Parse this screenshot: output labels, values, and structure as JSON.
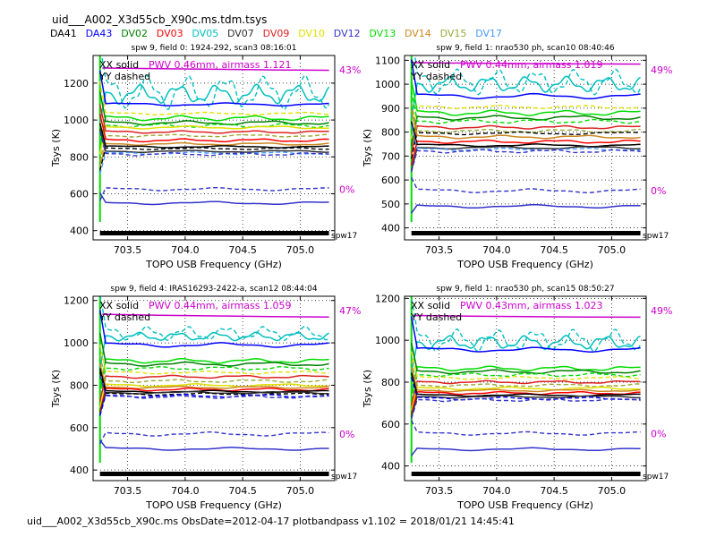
{
  "figure_title": "uid___A002_X3d55cb_X90c.ms.tdm.tsys",
  "footer": "uid___A002_X3d55cb_X90c.ms  ObsDate=2012-04-17   plotbandpass v1.102 = 2018/01/21 14:45:41",
  "antennas": [
    {
      "name": "DA41",
      "color": "#000000"
    },
    {
      "name": "DA43",
      "color": "#0000ff"
    },
    {
      "name": "DV02",
      "color": "#008000"
    },
    {
      "name": "DV03",
      "color": "#ff0000"
    },
    {
      "name": "DV05",
      "color": "#00bfbf"
    },
    {
      "name": "DV07",
      "color": "#303030"
    },
    {
      "name": "DV09",
      "color": "#dd2222"
    },
    {
      "name": "DV10",
      "color": "#e0e000"
    },
    {
      "name": "DV12",
      "color": "#3333cc"
    },
    {
      "name": "DV13",
      "color": "#00dd00"
    },
    {
      "name": "DV14",
      "color": "#cc8822"
    },
    {
      "name": "DV15",
      "color": "#99aa33"
    },
    {
      "name": "DV17",
      "color": "#4499ff"
    }
  ],
  "chart_data": [
    {
      "type": "line",
      "title": "spw 9,  field 0: 1924-292,  scan3  08:16:01",
      "xlabel": "TOPO USB Frequency (GHz)",
      "ylabel": "Tsys (K)",
      "xlim": [
        703.2,
        705.3
      ],
      "ylim": [
        350,
        1350
      ],
      "xticks": [
        703.5,
        704.0,
        704.5,
        705.0
      ],
      "xtick_labels": [
        "703.5",
        "704.0",
        "704.5",
        "705.0"
      ],
      "yticks": [
        400,
        600,
        800,
        1000,
        1200
      ],
      "ytick_labels": [
        "400",
        "600",
        "800",
        "1000",
        "1200"
      ],
      "grid": true,
      "legend_lines": [
        "XX solid",
        "YY dashed"
      ],
      "pwv_text": "PWV 0.46mm, airmass 1.121",
      "atm_percent_top": "43%",
      "atm_percent_bottom": "0%",
      "spw_label": "spw17",
      "atm_curve_y": [
        1282,
        1278,
        1275,
        1272,
        1270
      ],
      "series": [
        {
          "color": "#00bfbf",
          "style": "dashed",
          "base": 1150,
          "osc": 70,
          "period": 0.34,
          "phase": 0.2
        },
        {
          "color": "#00bfbf",
          "style": "solid",
          "base": 1140,
          "osc": 40,
          "period": 0.34,
          "phase": 1.6
        },
        {
          "color": "#0000ff",
          "style": "solid",
          "base": 1085,
          "osc": 6,
          "period": 0.9,
          "phase": 0
        },
        {
          "color": "#00dd00",
          "style": "solid",
          "base": 1010,
          "osc": 10,
          "period": 0.6,
          "phase": 0.4
        },
        {
          "color": "#008000",
          "style": "solid",
          "base": 985,
          "osc": 8,
          "period": 0.7,
          "phase": 1.1
        },
        {
          "color": "#00dd00",
          "style": "dashed",
          "base": 970,
          "osc": 8,
          "period": 0.55,
          "phase": 2.0
        },
        {
          "color": "#e0e000",
          "style": "dashed",
          "base": 1035,
          "osc": 5,
          "period": 0.8,
          "phase": 0.6
        },
        {
          "color": "#e0e000",
          "style": "solid",
          "base": 960,
          "osc": 6,
          "period": 0.75,
          "phase": 1.5
        },
        {
          "color": "#dd2222",
          "style": "solid",
          "base": 935,
          "osc": 5,
          "period": 0.6,
          "phase": 0.3
        },
        {
          "color": "#99aa33",
          "style": "dashed",
          "base": 915,
          "osc": 5,
          "period": 0.7,
          "phase": 2.4
        },
        {
          "color": "#ff0000",
          "style": "solid",
          "base": 890,
          "osc": 6,
          "period": 0.65,
          "phase": 0.9
        },
        {
          "color": "#cc8822",
          "style": "solid",
          "base": 870,
          "osc": 5,
          "period": 0.7,
          "phase": 1.7
        },
        {
          "color": "#000000",
          "style": "solid",
          "base": 855,
          "osc": 4,
          "period": 0.9,
          "phase": 0.2
        },
        {
          "color": "#000000",
          "style": "dashed",
          "base": 845,
          "osc": 4,
          "period": 0.8,
          "phase": 1.2
        },
        {
          "color": "#303030",
          "style": "solid",
          "base": 830,
          "osc": 4,
          "period": 0.85,
          "phase": 2.2
        },
        {
          "color": "#4499ff",
          "style": "dashed",
          "base": 820,
          "osc": 5,
          "period": 0.7,
          "phase": 0.5
        },
        {
          "color": "#3333cc",
          "style": "dashed",
          "base": 815,
          "osc": 6,
          "period": 0.6,
          "phase": 1.4
        },
        {
          "color": "#3333cc",
          "style": "dashed",
          "base": 625,
          "osc": 6,
          "period": 0.9,
          "phase": 0.8
        },
        {
          "color": "#3333cc",
          "style": "solid",
          "base": 550,
          "osc": 6,
          "period": 1.0,
          "phase": 1.9
        }
      ]
    },
    {
      "type": "line",
      "title": "spw 9,  field 1: nrao530 ph,  scan10  08:40:46",
      "xlabel": "TOPO USB Frequency (GHz)",
      "ylabel": "Tsys (K)",
      "xlim": [
        703.2,
        705.3
      ],
      "ylim": [
        350,
        1120
      ],
      "xticks": [
        703.5,
        704.0,
        704.5,
        705.0
      ],
      "xtick_labels": [
        "703.5",
        "704.0",
        "704.5",
        "705.0"
      ],
      "yticks": [
        400,
        500,
        600,
        700,
        800,
        900,
        1000,
        1100
      ],
      "ytick_labels": [
        "400",
        "500",
        "600",
        "700",
        "800",
        "900",
        "1000",
        "1100"
      ],
      "grid": true,
      "legend_lines": [
        "XX solid",
        "YY dashed"
      ],
      "pwv_text": "PWV 0.44mm, airmass 1.019",
      "atm_percent_top": "49%",
      "atm_percent_bottom": "0%",
      "spw_label": "spw17",
      "atm_curve_y": [
        1090,
        1088,
        1086,
        1085,
        1084
      ],
      "series": [
        {
          "color": "#00bfbf",
          "style": "dashed",
          "base": 1010,
          "osc": 40,
          "period": 0.34,
          "phase": 0.4
        },
        {
          "color": "#00bfbf",
          "style": "solid",
          "base": 1000,
          "osc": 25,
          "period": 0.34,
          "phase": 1.9
        },
        {
          "color": "#0000ff",
          "style": "solid",
          "base": 950,
          "osc": 8,
          "period": 0.9,
          "phase": 0.3
        },
        {
          "color": "#e0e000",
          "style": "dashed",
          "base": 905,
          "osc": 5,
          "period": 0.7,
          "phase": 1.0
        },
        {
          "color": "#00dd00",
          "style": "solid",
          "base": 880,
          "osc": 8,
          "period": 0.6,
          "phase": 0.4
        },
        {
          "color": "#008000",
          "style": "solid",
          "base": 860,
          "osc": 7,
          "period": 0.7,
          "phase": 1.3
        },
        {
          "color": "#00dd00",
          "style": "dashed",
          "base": 845,
          "osc": 6,
          "period": 0.55,
          "phase": 2.0
        },
        {
          "color": "#dd2222",
          "style": "solid",
          "base": 820,
          "osc": 5,
          "period": 0.6,
          "phase": 0.6
        },
        {
          "color": "#99aa33",
          "style": "dashed",
          "base": 805,
          "osc": 5,
          "period": 0.7,
          "phase": 2.3
        },
        {
          "color": "#000000",
          "style": "dashed",
          "base": 795,
          "osc": 4,
          "period": 0.9,
          "phase": 1.5
        },
        {
          "color": "#cc8822",
          "style": "solid",
          "base": 780,
          "osc": 5,
          "period": 0.7,
          "phase": 0.8
        },
        {
          "color": "#ff0000",
          "style": "solid",
          "base": 760,
          "osc": 5,
          "period": 0.65,
          "phase": 1.8
        },
        {
          "color": "#000000",
          "style": "solid",
          "base": 745,
          "osc": 4,
          "period": 0.9,
          "phase": 0.1
        },
        {
          "color": "#303030",
          "style": "solid",
          "base": 735,
          "osc": 4,
          "period": 0.85,
          "phase": 2.4
        },
        {
          "color": "#4499ff",
          "style": "dashed",
          "base": 728,
          "osc": 4,
          "period": 0.7,
          "phase": 0.7
        },
        {
          "color": "#3333cc",
          "style": "dashed",
          "base": 720,
          "osc": 5,
          "period": 0.6,
          "phase": 1.6
        },
        {
          "color": "#3333cc",
          "style": "dashed",
          "base": 555,
          "osc": 6,
          "period": 0.9,
          "phase": 0.5
        },
        {
          "color": "#3333cc",
          "style": "solid",
          "base": 490,
          "osc": 5,
          "period": 1.0,
          "phase": 1.2
        }
      ]
    },
    {
      "type": "line",
      "title": "spw 9,  field 4: IRAS16293-2422-a,  scan12  08:44:04",
      "xlabel": "TOPO USB Frequency (GHz)",
      "ylabel": "Tsys (K)",
      "xlim": [
        703.2,
        705.3
      ],
      "ylim": [
        350,
        1220
      ],
      "xticks": [
        703.5,
        704.0,
        704.5,
        705.0
      ],
      "xtick_labels": [
        "703.5",
        "704.0",
        "704.5",
        "705.0"
      ],
      "yticks": [
        400,
        600,
        800,
        1000,
        1200
      ],
      "ytick_labels": [
        "400",
        "600",
        "800",
        "1000",
        "1200"
      ],
      "grid": true,
      "legend_lines": [
        "XX solid",
        "YY dashed"
      ],
      "pwv_text": "PWV 0.44mm, airmass 1.059",
      "atm_percent_top": "47%",
      "atm_percent_bottom": "0%",
      "spw_label": "spw17",
      "atm_curve_y": [
        1135,
        1130,
        1127,
        1124,
        1122
      ],
      "series": [
        {
          "color": "#00bfbf",
          "style": "dashed",
          "base": 1045,
          "osc": 25,
          "period": 0.34,
          "phase": 0.2
        },
        {
          "color": "#00bfbf",
          "style": "solid",
          "base": 1030,
          "osc": 15,
          "period": 0.34,
          "phase": 1.7
        },
        {
          "color": "#0000ff",
          "style": "solid",
          "base": 990,
          "osc": 8,
          "period": 0.9,
          "phase": 0.4
        },
        {
          "color": "#00dd00",
          "style": "solid",
          "base": 915,
          "osc": 8,
          "period": 0.6,
          "phase": 0.3
        },
        {
          "color": "#008000",
          "style": "solid",
          "base": 900,
          "osc": 7,
          "period": 0.7,
          "phase": 1.2
        },
        {
          "color": "#00dd00",
          "style": "dashed",
          "base": 880,
          "osc": 6,
          "period": 0.55,
          "phase": 2.1
        },
        {
          "color": "#e0e000",
          "style": "dashed",
          "base": 860,
          "osc": 5,
          "period": 0.8,
          "phase": 0.6
        },
        {
          "color": "#dd2222",
          "style": "solid",
          "base": 840,
          "osc": 5,
          "period": 0.6,
          "phase": 1.4
        },
        {
          "color": "#99aa33",
          "style": "dashed",
          "base": 820,
          "osc": 5,
          "period": 0.7,
          "phase": 2.2
        },
        {
          "color": "#e0e000",
          "style": "solid",
          "base": 800,
          "osc": 5,
          "period": 0.75,
          "phase": 0.9
        },
        {
          "color": "#cc8822",
          "style": "solid",
          "base": 790,
          "osc": 4,
          "period": 0.7,
          "phase": 1.9
        },
        {
          "color": "#ff0000",
          "style": "solid",
          "base": 780,
          "osc": 5,
          "period": 0.65,
          "phase": 0.2
        },
        {
          "color": "#000000",
          "style": "solid",
          "base": 770,
          "osc": 4,
          "period": 0.9,
          "phase": 1.1
        },
        {
          "color": "#303030",
          "style": "solid",
          "base": 765,
          "osc": 4,
          "period": 0.85,
          "phase": 2.3
        },
        {
          "color": "#000000",
          "style": "dashed",
          "base": 758,
          "osc": 4,
          "period": 0.8,
          "phase": 0.7
        },
        {
          "color": "#0000ff",
          "style": "dashed",
          "base": 750,
          "osc": 5,
          "period": 0.7,
          "phase": 1.5
        },
        {
          "color": "#3333cc",
          "style": "dashed",
          "base": 745,
          "osc": 5,
          "period": 0.6,
          "phase": 0.4
        },
        {
          "color": "#3333cc",
          "style": "dashed",
          "base": 570,
          "osc": 7,
          "period": 0.9,
          "phase": 1.3
        },
        {
          "color": "#3333cc",
          "style": "solid",
          "base": 500,
          "osc": 5,
          "period": 1.0,
          "phase": 0.6
        }
      ]
    },
    {
      "type": "line",
      "title": "spw 9,  field 1: nrao530 ph,  scan15  08:50:27",
      "xlabel": "TOPO USB Frequency (GHz)",
      "ylabel": "Tsys (K)",
      "xlim": [
        703.2,
        705.3
      ],
      "ylim": [
        330,
        1210
      ],
      "xticks": [
        703.5,
        704.0,
        704.5,
        705.0
      ],
      "xtick_labels": [
        "703.5",
        "704.0",
        "704.5",
        "705.0"
      ],
      "yticks": [
        400,
        600,
        800,
        1000,
        1200
      ],
      "ytick_labels": [
        "400",
        "600",
        "800",
        "1000",
        "1200"
      ],
      "grid": true,
      "legend_lines": [
        "XX solid",
        "YY dashed"
      ],
      "pwv_text": "PWV 0.43mm, airmass 1.023",
      "atm_percent_top": "49%",
      "atm_percent_bottom": "0%",
      "spw_label": "spw17",
      "atm_curve_y": [
        1118,
        1115,
        1113,
        1111,
        1110
      ],
      "series": [
        {
          "color": "#00bfbf",
          "style": "dashed",
          "base": 1000,
          "osc": 40,
          "period": 0.34,
          "phase": 0.5
        },
        {
          "color": "#00bfbf",
          "style": "solid",
          "base": 990,
          "osc": 25,
          "period": 0.34,
          "phase": 2.0
        },
        {
          "color": "#0000ff",
          "style": "solid",
          "base": 955,
          "osc": 8,
          "period": 0.9,
          "phase": 0.2
        },
        {
          "color": "#00dd00",
          "style": "solid",
          "base": 865,
          "osc": 8,
          "period": 0.6,
          "phase": 0.7
        },
        {
          "color": "#008000",
          "style": "solid",
          "base": 850,
          "osc": 7,
          "period": 0.7,
          "phase": 1.5
        },
        {
          "color": "#00dd00",
          "style": "dashed",
          "base": 835,
          "osc": 6,
          "period": 0.55,
          "phase": 2.2
        },
        {
          "color": "#e0e000",
          "style": "dashed",
          "base": 820,
          "osc": 5,
          "period": 0.8,
          "phase": 0.4
        },
        {
          "color": "#dd2222",
          "style": "solid",
          "base": 800,
          "osc": 5,
          "period": 0.6,
          "phase": 1.1
        },
        {
          "color": "#99aa33",
          "style": "dashed",
          "base": 785,
          "osc": 5,
          "period": 0.7,
          "phase": 2.5
        },
        {
          "color": "#e0e000",
          "style": "solid",
          "base": 770,
          "osc": 5,
          "period": 0.75,
          "phase": 0.8
        },
        {
          "color": "#cc8822",
          "style": "solid",
          "base": 760,
          "osc": 4,
          "period": 0.7,
          "phase": 1.7
        },
        {
          "color": "#ff0000",
          "style": "solid",
          "base": 748,
          "osc": 5,
          "period": 0.65,
          "phase": 0.3
        },
        {
          "color": "#000000",
          "style": "solid",
          "base": 738,
          "osc": 4,
          "period": 0.9,
          "phase": 1.0
        },
        {
          "color": "#303030",
          "style": "solid",
          "base": 730,
          "osc": 4,
          "period": 0.85,
          "phase": 2.1
        },
        {
          "color": "#0000ff",
          "style": "dashed",
          "base": 722,
          "osc": 5,
          "period": 0.7,
          "phase": 0.6
        },
        {
          "color": "#3333cc",
          "style": "dashed",
          "base": 715,
          "osc": 5,
          "period": 0.6,
          "phase": 1.8
        },
        {
          "color": "#3333cc",
          "style": "dashed",
          "base": 555,
          "osc": 6,
          "period": 0.9,
          "phase": 0.9
        },
        {
          "color": "#3333cc",
          "style": "solid",
          "base": 480,
          "osc": 5,
          "period": 1.0,
          "phase": 1.4
        }
      ]
    }
  ]
}
